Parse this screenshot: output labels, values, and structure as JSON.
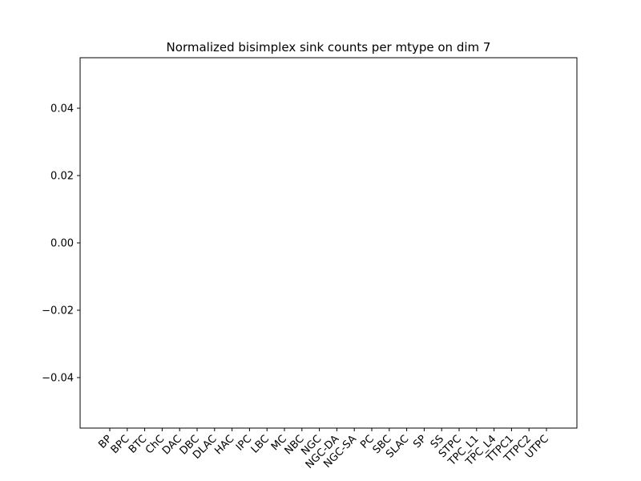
{
  "chart_data": {
    "type": "bar",
    "title": "Normalized bisimplex sink counts per mtype on dim 7",
    "xlabel": "",
    "ylabel": "",
    "categories": [
      "BP",
      "BPC",
      "BTC",
      "ChC",
      "DAC",
      "DBC",
      "DLAC",
      "HAC",
      "IPC",
      "LBC",
      "MC",
      "NBC",
      "NGC",
      "NGC-DA",
      "NGC-SA",
      "PC",
      "SBC",
      "SLAC",
      "SP",
      "SS",
      "STPC",
      "TPC_L1",
      "TPC_L4",
      "TTPC1",
      "TTPC2",
      "UTPC"
    ],
    "values": [
      null,
      null,
      null,
      null,
      null,
      null,
      null,
      null,
      null,
      null,
      null,
      null,
      null,
      null,
      null,
      null,
      null,
      null,
      null,
      null,
      null,
      null,
      null,
      null,
      null,
      null
    ],
    "ylim": [
      -0.055,
      0.055
    ],
    "yticks": [
      -0.04,
      -0.02,
      0.0,
      0.02,
      0.04
    ],
    "ytick_labels": [
      "−0.04",
      "−0.02",
      "0.00",
      "0.02",
      "0.04"
    ],
    "grid": false,
    "colors": {
      "axis": "#000000",
      "background": "#ffffff"
    }
  }
}
